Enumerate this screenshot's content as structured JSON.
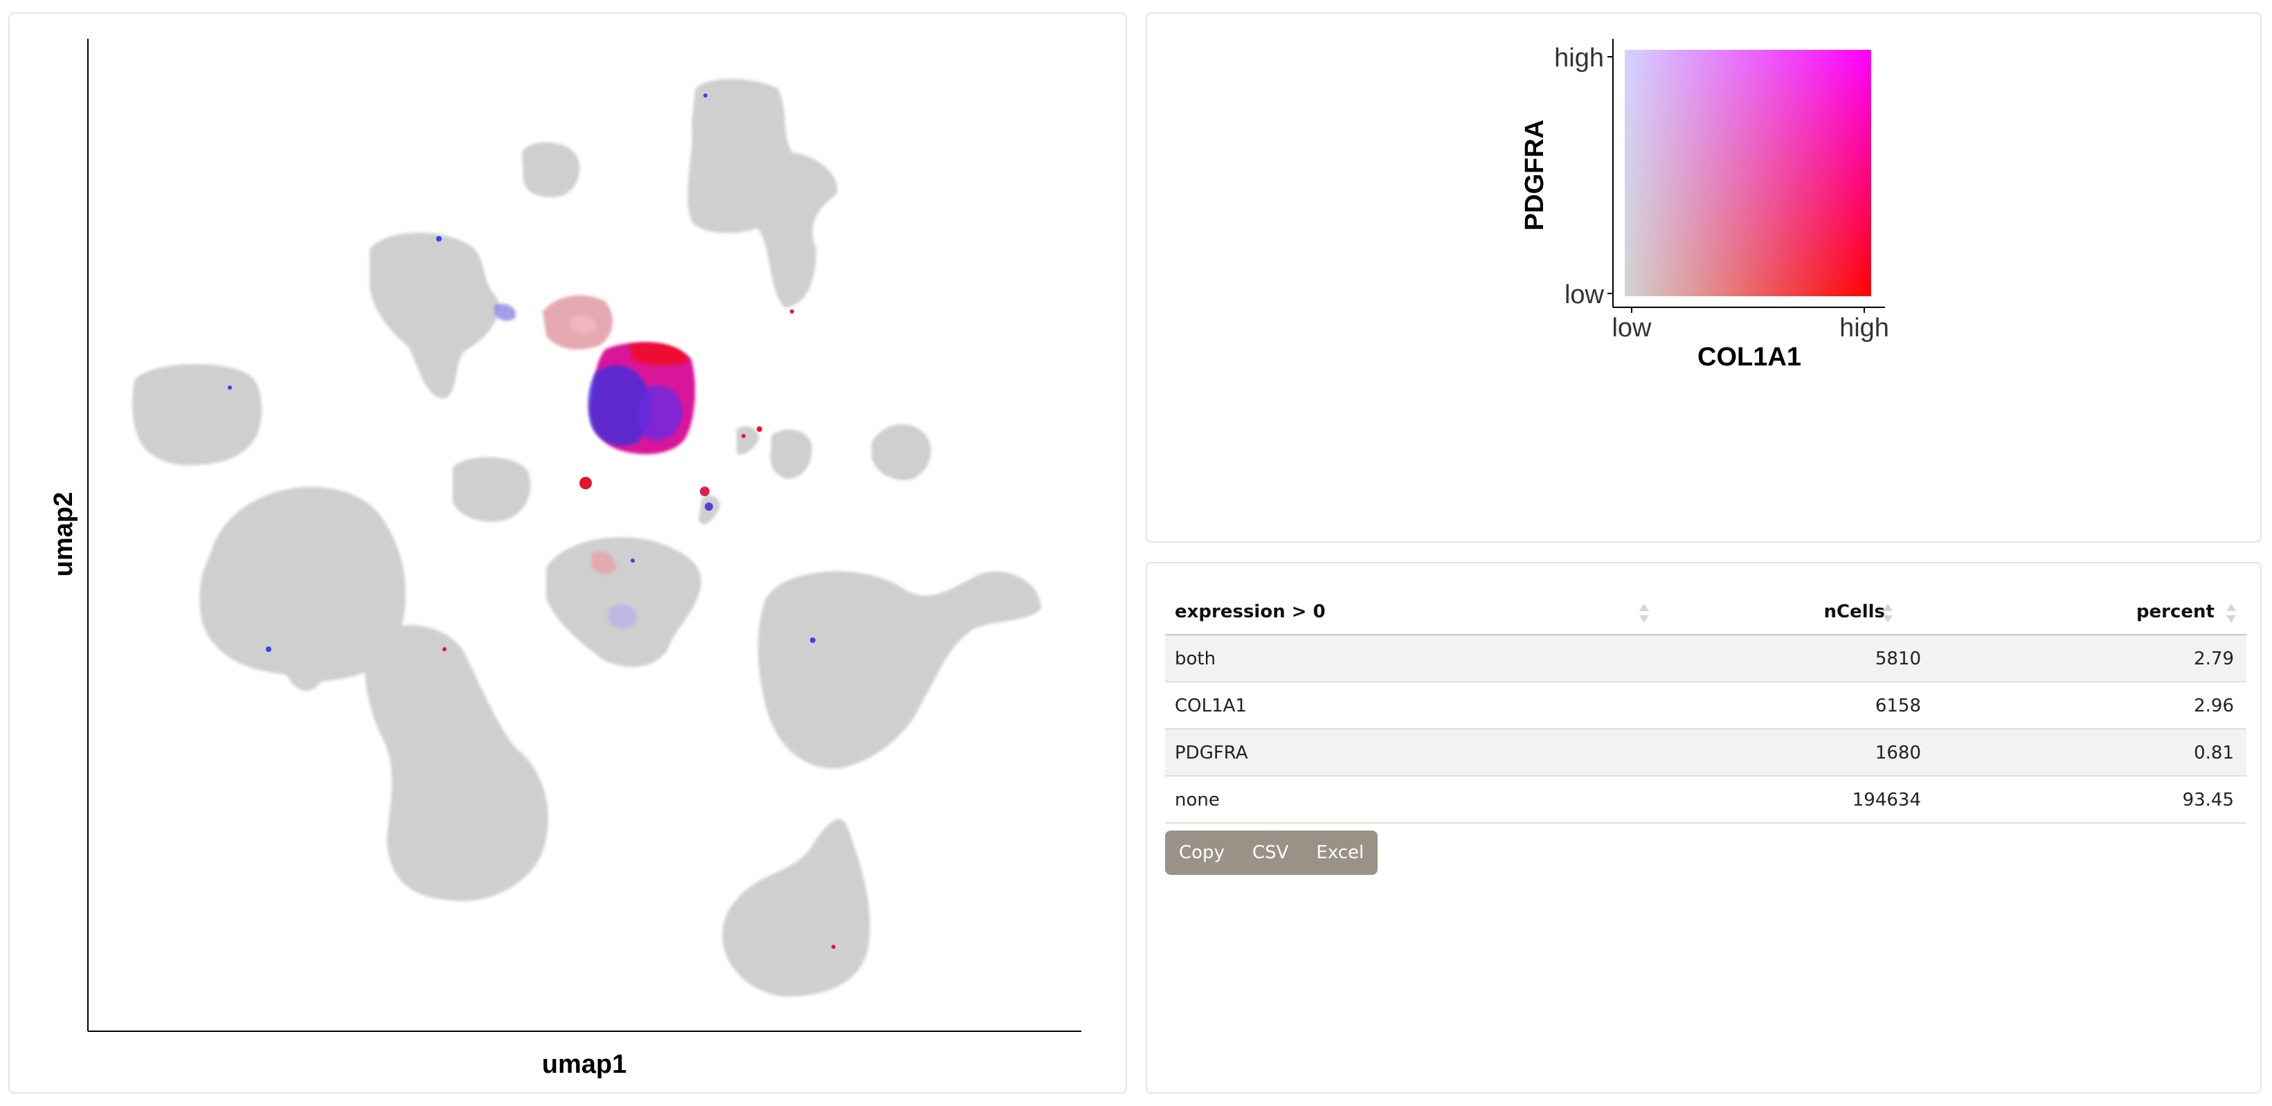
{
  "umap": {
    "xlabel": "umap1",
    "ylabel": "umap2",
    "colors": {
      "background_cells": "#cfcfcf",
      "col1a1": "#ee1122",
      "pdgfra": "#2233ee",
      "both": "#cc1199"
    }
  },
  "legend": {
    "xlabel": "COL1A1",
    "ylabel": "PDGFRA",
    "x_low": "low",
    "x_high": "high",
    "y_low": "low",
    "y_high": "high",
    "colors": {
      "low_low": "#d3d3d3",
      "high_x": "#ff0000",
      "high_y": "#0000ff",
      "high_both": "#ff00ff"
    }
  },
  "table": {
    "columns": [
      "expression > 0",
      "nCells",
      "percent"
    ],
    "rows": [
      {
        "label": "both",
        "ncells": "5810",
        "percent": "2.79"
      },
      {
        "label": "COL1A1",
        "ncells": "6158",
        "percent": "2.96"
      },
      {
        "label": "PDGFRA",
        "ncells": "1680",
        "percent": "0.81"
      },
      {
        "label": "none",
        "ncells": "194634",
        "percent": "93.45"
      }
    ],
    "buttons": [
      "Copy",
      "CSV",
      "Excel"
    ]
  }
}
